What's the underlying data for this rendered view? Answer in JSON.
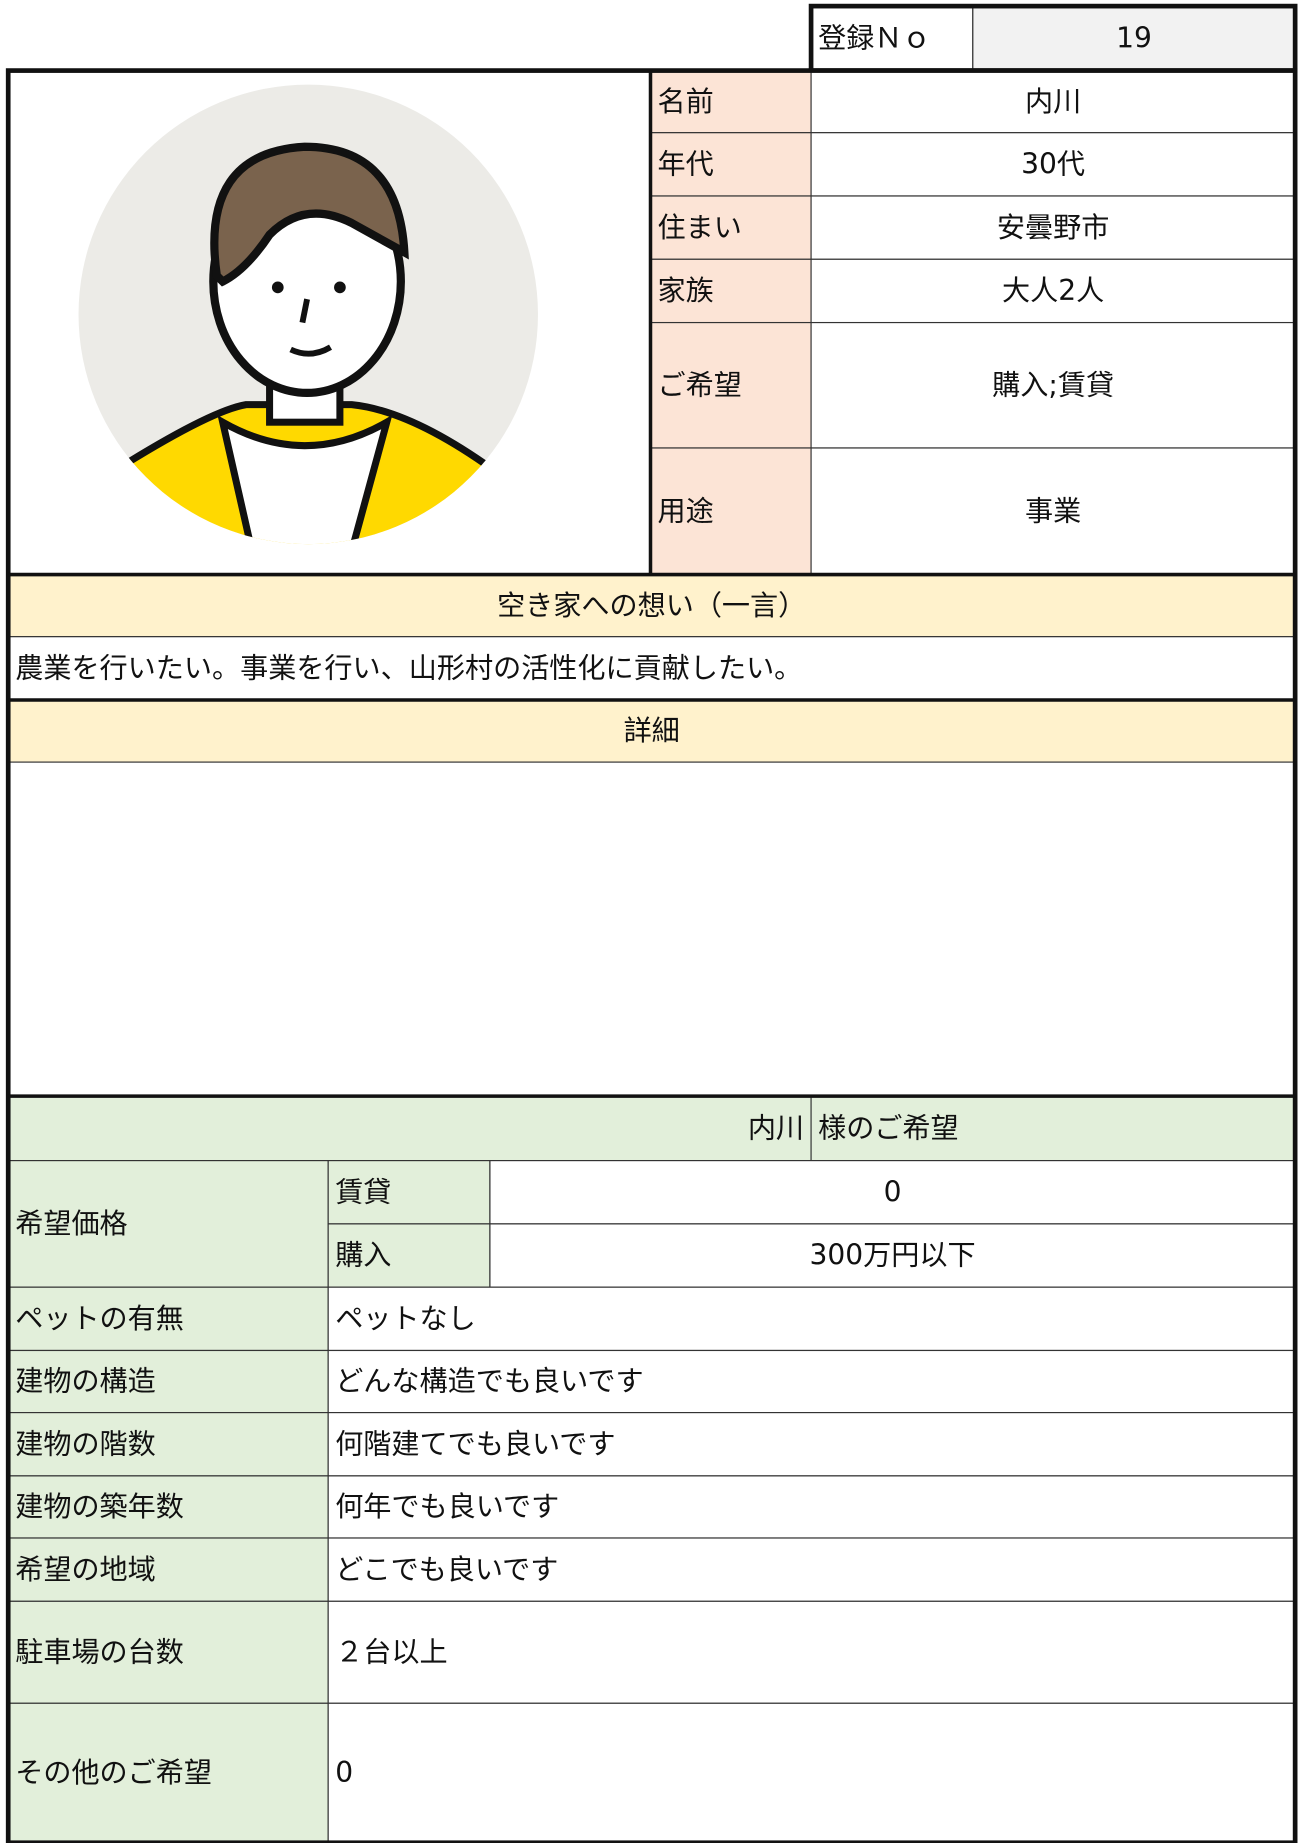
{
  "registration": {
    "label": "登録Ｎｏ",
    "value": "19"
  },
  "profile": [
    {
      "label": "名前",
      "value": "内川"
    },
    {
      "label": "年代",
      "value": "30代"
    },
    {
      "label": "住まい",
      "value": "安曇野市"
    },
    {
      "label": "家族",
      "value": "大人2人"
    },
    {
      "label": "ご希望",
      "value": "購入;賃貸"
    },
    {
      "label": "用途",
      "value": "事業"
    }
  ],
  "thoughts": {
    "heading": "空き家への想い（一言）",
    "text": "農業を行いたい。事業を行い、山形村の活性化に貢献したい。"
  },
  "details": {
    "heading": "詳細"
  },
  "wishes": {
    "name": "内川",
    "heading": "様のご希望",
    "price": {
      "label": "希望価格",
      "rows": [
        {
          "label": "賃貸",
          "value": "0"
        },
        {
          "label": "購入",
          "value": "300万円以下"
        }
      ]
    },
    "rows": [
      {
        "label": "ペットの有無",
        "value": "ペットなし"
      },
      {
        "label": "建物の構造",
        "value": "どんな構造でも良いです"
      },
      {
        "label": "建物の階数",
        "value": "何階建てでも良いです"
      },
      {
        "label": "建物の築年数",
        "value": "何年でも良いです"
      },
      {
        "label": "希望の地域",
        "value": "どこでも良いです"
      },
      {
        "label": "駐車場の台数",
        "value": "２台以上"
      },
      {
        "label": "その他のご希望",
        "value": "0"
      }
    ]
  }
}
